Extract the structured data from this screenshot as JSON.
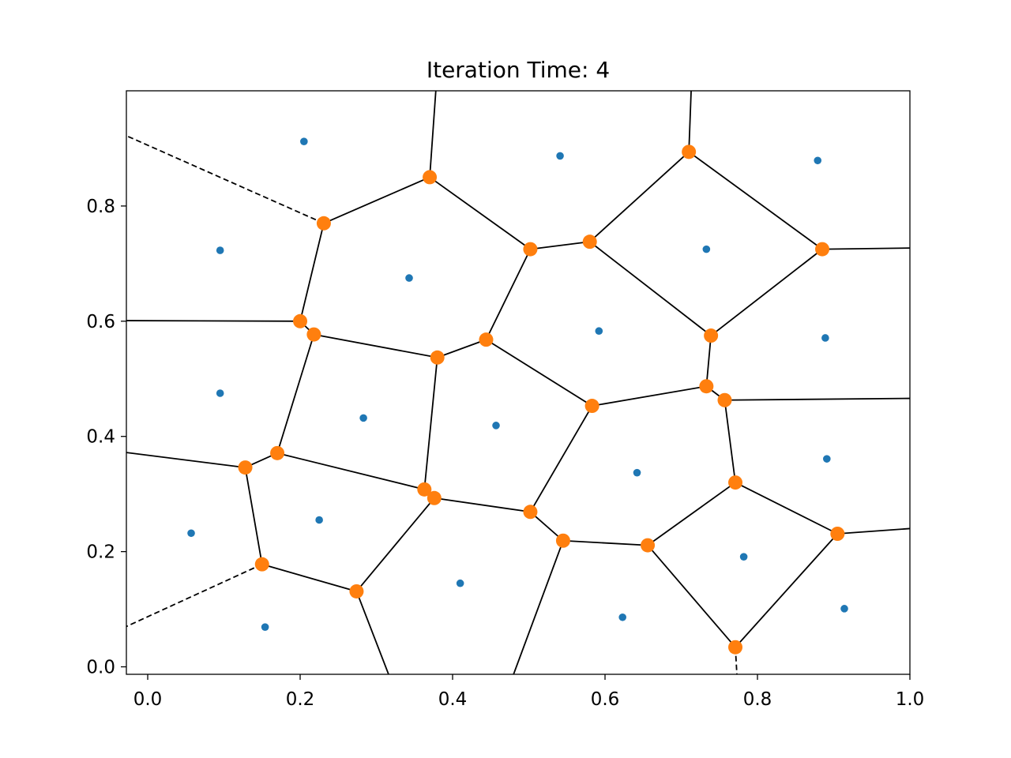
{
  "chart_data": {
    "type": "scatter",
    "title": "Iteration Time: 4",
    "xlabel": "",
    "ylabel": "",
    "xlim": [
      -0.028,
      1.0
    ],
    "ylim": [
      -0.013,
      1.0
    ],
    "x_ticks": [
      0.0,
      0.2,
      0.4,
      0.6,
      0.8,
      1.0
    ],
    "x_tick_labels": [
      "0.0",
      "0.2",
      "0.4",
      "0.6",
      "0.8",
      "1.0"
    ],
    "y_ticks": [
      0.0,
      0.2,
      0.4,
      0.6,
      0.8
    ],
    "y_tick_labels": [
      "0.0",
      "0.2",
      "0.4",
      "0.6",
      "0.8"
    ],
    "grid": false,
    "colors": {
      "points": "#1f77b4",
      "vertices": "#ff7f0e",
      "edges": "#000000"
    },
    "series": [
      {
        "role": "sites",
        "x": [
          0.205,
          0.541,
          0.879,
          0.095,
          0.343,
          0.733,
          0.592,
          0.889,
          0.095,
          0.283,
          0.457,
          0.642,
          0.891,
          0.057,
          0.225,
          0.782,
          0.154,
          0.41,
          0.623,
          0.914
        ],
        "y": [
          0.912,
          0.887,
          0.879,
          0.723,
          0.675,
          0.725,
          0.583,
          0.571,
          0.475,
          0.432,
          0.419,
          0.337,
          0.361,
          0.232,
          0.255,
          0.191,
          0.069,
          0.145,
          0.086,
          0.101
        ]
      },
      {
        "role": "vertices",
        "x": [
          0.231,
          0.37,
          0.71,
          0.502,
          0.58,
          0.885,
          0.2,
          0.218,
          0.444,
          0.38,
          0.739,
          0.733,
          0.757,
          0.583,
          0.128,
          0.17,
          0.363,
          0.376,
          0.502,
          0.771,
          0.905,
          0.545,
          0.656,
          0.15,
          0.274,
          0.771
        ],
        "y": [
          0.77,
          0.85,
          0.894,
          0.725,
          0.738,
          0.725,
          0.6,
          0.577,
          0.568,
          0.537,
          0.575,
          0.487,
          0.463,
          0.453,
          0.346,
          0.371,
          0.308,
          0.293,
          0.269,
          0.32,
          0.231,
          0.219,
          0.211,
          0.178,
          0.131,
          0.034
        ]
      }
    ],
    "edges": [
      [
        0,
        1
      ],
      [
        1,
        3
      ],
      [
        3,
        4
      ],
      [
        4,
        2
      ],
      [
        2,
        5
      ],
      [
        4,
        10
      ],
      [
        10,
        5
      ],
      [
        0,
        6
      ],
      [
        6,
        7
      ],
      [
        7,
        9
      ],
      [
        9,
        8
      ],
      [
        8,
        3
      ],
      [
        8,
        13
      ],
      [
        13,
        11
      ],
      [
        11,
        10
      ],
      [
        11,
        12
      ],
      [
        7,
        15
      ],
      [
        15,
        14
      ],
      [
        15,
        16
      ],
      [
        16,
        9
      ],
      [
        16,
        17
      ],
      [
        17,
        18
      ],
      [
        18,
        13
      ],
      [
        12,
        19
      ],
      [
        19,
        20
      ],
      [
        19,
        22
      ],
      [
        22,
        21
      ],
      [
        21,
        18
      ],
      [
        14,
        23
      ],
      [
        23,
        24
      ],
      [
        24,
        17
      ],
      [
        22,
        25
      ],
      [
        25,
        20
      ]
    ],
    "rays": [
      {
        "from": 1,
        "to": [
          0.378,
          1.0
        ],
        "dashed": false
      },
      {
        "from": 2,
        "to": [
          0.713,
          1.0
        ],
        "dashed": false
      },
      {
        "from": 5,
        "to": [
          1.0,
          0.727
        ],
        "dashed": false
      },
      {
        "from": 6,
        "to": [
          -0.028,
          0.601
        ],
        "dashed": false
      },
      {
        "from": 12,
        "to": [
          1.0,
          0.466
        ],
        "dashed": false
      },
      {
        "from": 14,
        "to": [
          -0.028,
          0.372
        ],
        "dashed": false
      },
      {
        "from": 20,
        "to": [
          1.0,
          0.24
        ],
        "dashed": false
      },
      {
        "from": 24,
        "to": [
          0.316,
          -0.013
        ],
        "dashed": false
      },
      {
        "from": 21,
        "to": [
          0.48,
          -0.013
        ],
        "dashed": false
      },
      {
        "from": 0,
        "to": [
          -0.028,
          0.922
        ],
        "dashed": true
      },
      {
        "from": 23,
        "to": [
          -0.028,
          0.07
        ],
        "dashed": true
      },
      {
        "from": 25,
        "to": [
          0.773,
          -0.013
        ],
        "dashed": true
      }
    ]
  }
}
